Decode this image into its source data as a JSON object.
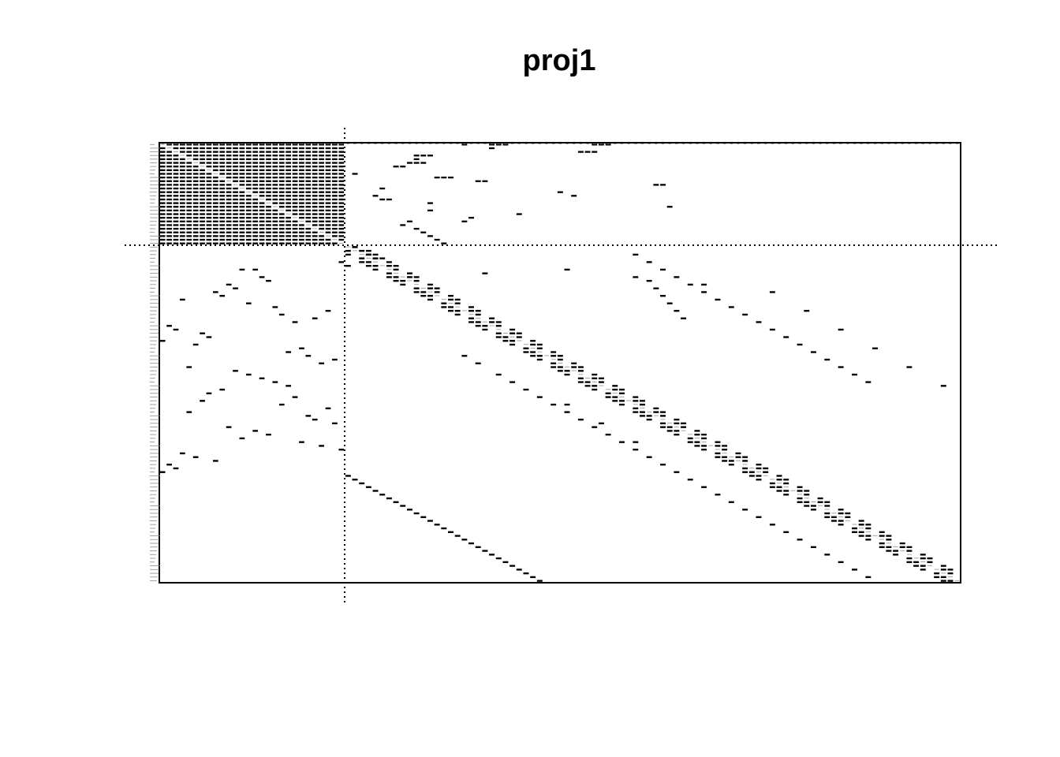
{
  "chart_data": {
    "type": "heatmap",
    "title": "proj1",
    "xlabel": "",
    "ylabel": "",
    "n_actors": 118,
    "partition": {
      "block1_size": 28,
      "block2_size": 90
    },
    "diagonal_band_width": 2,
    "off_diagonal_ties": [
      [
        0,
        45
      ],
      [
        0,
        49
      ],
      [
        0,
        50
      ],
      [
        0,
        51
      ],
      [
        0,
        64
      ],
      [
        0,
        65
      ],
      [
        0,
        66
      ],
      [
        1,
        49
      ],
      [
        2,
        62
      ],
      [
        2,
        63
      ],
      [
        2,
        64
      ],
      [
        3,
        38
      ],
      [
        3,
        39
      ],
      [
        3,
        40
      ],
      [
        4,
        38
      ],
      [
        5,
        37
      ],
      [
        5,
        38
      ],
      [
        5,
        39
      ],
      [
        6,
        35
      ],
      [
        6,
        36
      ],
      [
        8,
        29
      ],
      [
        9,
        41
      ],
      [
        9,
        42
      ],
      [
        9,
        43
      ],
      [
        10,
        47
      ],
      [
        10,
        48
      ],
      [
        11,
        73
      ],
      [
        11,
        74
      ],
      [
        12,
        33
      ],
      [
        13,
        59
      ],
      [
        14,
        32
      ],
      [
        14,
        61
      ],
      [
        15,
        33
      ],
      [
        15,
        34
      ],
      [
        16,
        40
      ],
      [
        17,
        75
      ],
      [
        18,
        40
      ],
      [
        19,
        53
      ],
      [
        20,
        46
      ],
      [
        21,
        37
      ],
      [
        21,
        45
      ],
      [
        22,
        36
      ],
      [
        23,
        38
      ],
      [
        24,
        39
      ],
      [
        25,
        40
      ],
      [
        26,
        41
      ],
      [
        27,
        42
      ],
      [
        28,
        29
      ],
      [
        29,
        30
      ],
      [
        30,
        31
      ],
      [
        31,
        32
      ],
      [
        31,
        33
      ],
      [
        32,
        27
      ],
      [
        33,
        28
      ],
      [
        34,
        12
      ],
      [
        34,
        14
      ],
      [
        35,
        48
      ],
      [
        36,
        15
      ],
      [
        37,
        16
      ],
      [
        38,
        10
      ],
      [
        39,
        11
      ],
      [
        40,
        8
      ],
      [
        41,
        9
      ],
      [
        42,
        3
      ],
      [
        43,
        13
      ],
      [
        44,
        17
      ],
      [
        45,
        25
      ],
      [
        46,
        18
      ],
      [
        47,
        23
      ],
      [
        48,
        20
      ],
      [
        49,
        1
      ],
      [
        50,
        2
      ],
      [
        51,
        6
      ],
      [
        52,
        7
      ],
      [
        53,
        0
      ],
      [
        54,
        5
      ],
      [
        55,
        21
      ],
      [
        56,
        19
      ],
      [
        57,
        22
      ],
      [
        58,
        26
      ],
      [
        59,
        24
      ],
      [
        60,
        4
      ],
      [
        61,
        11
      ],
      [
        62,
        13
      ],
      [
        63,
        15
      ],
      [
        64,
        17
      ],
      [
        65,
        19
      ],
      [
        66,
        9
      ],
      [
        67,
        7
      ],
      [
        68,
        20
      ],
      [
        69,
        6
      ],
      [
        70,
        18
      ],
      [
        71,
        25
      ],
      [
        72,
        4
      ],
      [
        73,
        22
      ],
      [
        74,
        23
      ],
      [
        75,
        26
      ],
      [
        76,
        10
      ],
      [
        77,
        14
      ],
      [
        78,
        16
      ],
      [
        79,
        12
      ],
      [
        80,
        21
      ],
      [
        81,
        24
      ],
      [
        82,
        27
      ],
      [
        83,
        3
      ],
      [
        84,
        5
      ],
      [
        85,
        8
      ],
      [
        86,
        1
      ],
      [
        87,
        2
      ],
      [
        88,
        0
      ],
      [
        89,
        28
      ],
      [
        90,
        29
      ],
      [
        91,
        30
      ],
      [
        92,
        31
      ],
      [
        93,
        32
      ],
      [
        94,
        33
      ],
      [
        95,
        34
      ],
      [
        96,
        35
      ],
      [
        97,
        36
      ],
      [
        98,
        37
      ],
      [
        99,
        38
      ],
      [
        100,
        39
      ],
      [
        101,
        40
      ],
      [
        102,
        41
      ],
      [
        103,
        42
      ],
      [
        104,
        43
      ],
      [
        105,
        44
      ],
      [
        106,
        45
      ],
      [
        107,
        46
      ],
      [
        108,
        47
      ],
      [
        109,
        48
      ],
      [
        110,
        49
      ],
      [
        111,
        50
      ],
      [
        112,
        51
      ],
      [
        113,
        52
      ],
      [
        114,
        53
      ],
      [
        115,
        54
      ],
      [
        116,
        55
      ],
      [
        117,
        56
      ],
      [
        34,
        60
      ],
      [
        36,
        70
      ],
      [
        38,
        80
      ],
      [
        40,
        90
      ],
      [
        45,
        95
      ],
      [
        50,
        100
      ],
      [
        55,
        105
      ],
      [
        60,
        110
      ],
      [
        65,
        115
      ],
      [
        70,
        60
      ],
      [
        75,
        65
      ],
      [
        80,
        70
      ],
      [
        57,
        45
      ],
      [
        59,
        47
      ],
      [
        62,
        50
      ],
      [
        64,
        52
      ],
      [
        66,
        54
      ],
      [
        68,
        56
      ],
      [
        70,
        58
      ],
      [
        72,
        60
      ],
      [
        74,
        62
      ],
      [
        76,
        64
      ],
      [
        78,
        66
      ],
      [
        80,
        68
      ],
      [
        82,
        70
      ],
      [
        84,
        72
      ],
      [
        86,
        74
      ],
      [
        88,
        76
      ],
      [
        90,
        78
      ],
      [
        92,
        80
      ],
      [
        94,
        82
      ],
      [
        96,
        84
      ],
      [
        98,
        86
      ],
      [
        100,
        88
      ],
      [
        102,
        90
      ],
      [
        104,
        92
      ],
      [
        106,
        94
      ],
      [
        108,
        96
      ],
      [
        110,
        98
      ],
      [
        112,
        100
      ],
      [
        114,
        102
      ],
      [
        116,
        104
      ],
      [
        30,
        70
      ],
      [
        32,
        72
      ],
      [
        34,
        74
      ],
      [
        36,
        76
      ],
      [
        38,
        78
      ],
      [
        40,
        80
      ],
      [
        42,
        82
      ],
      [
        44,
        84
      ],
      [
        46,
        86
      ],
      [
        48,
        88
      ],
      [
        50,
        90
      ],
      [
        52,
        92
      ],
      [
        54,
        94
      ],
      [
        56,
        96
      ],
      [
        58,
        98
      ],
      [
        60,
        100
      ],
      [
        62,
        102
      ],
      [
        64,
        104
      ],
      [
        37,
        72
      ],
      [
        39,
        73
      ],
      [
        41,
        74
      ],
      [
        43,
        75
      ],
      [
        45,
        76
      ],
      [
        47,
        77
      ]
    ],
    "grid": false,
    "legend": "none"
  }
}
